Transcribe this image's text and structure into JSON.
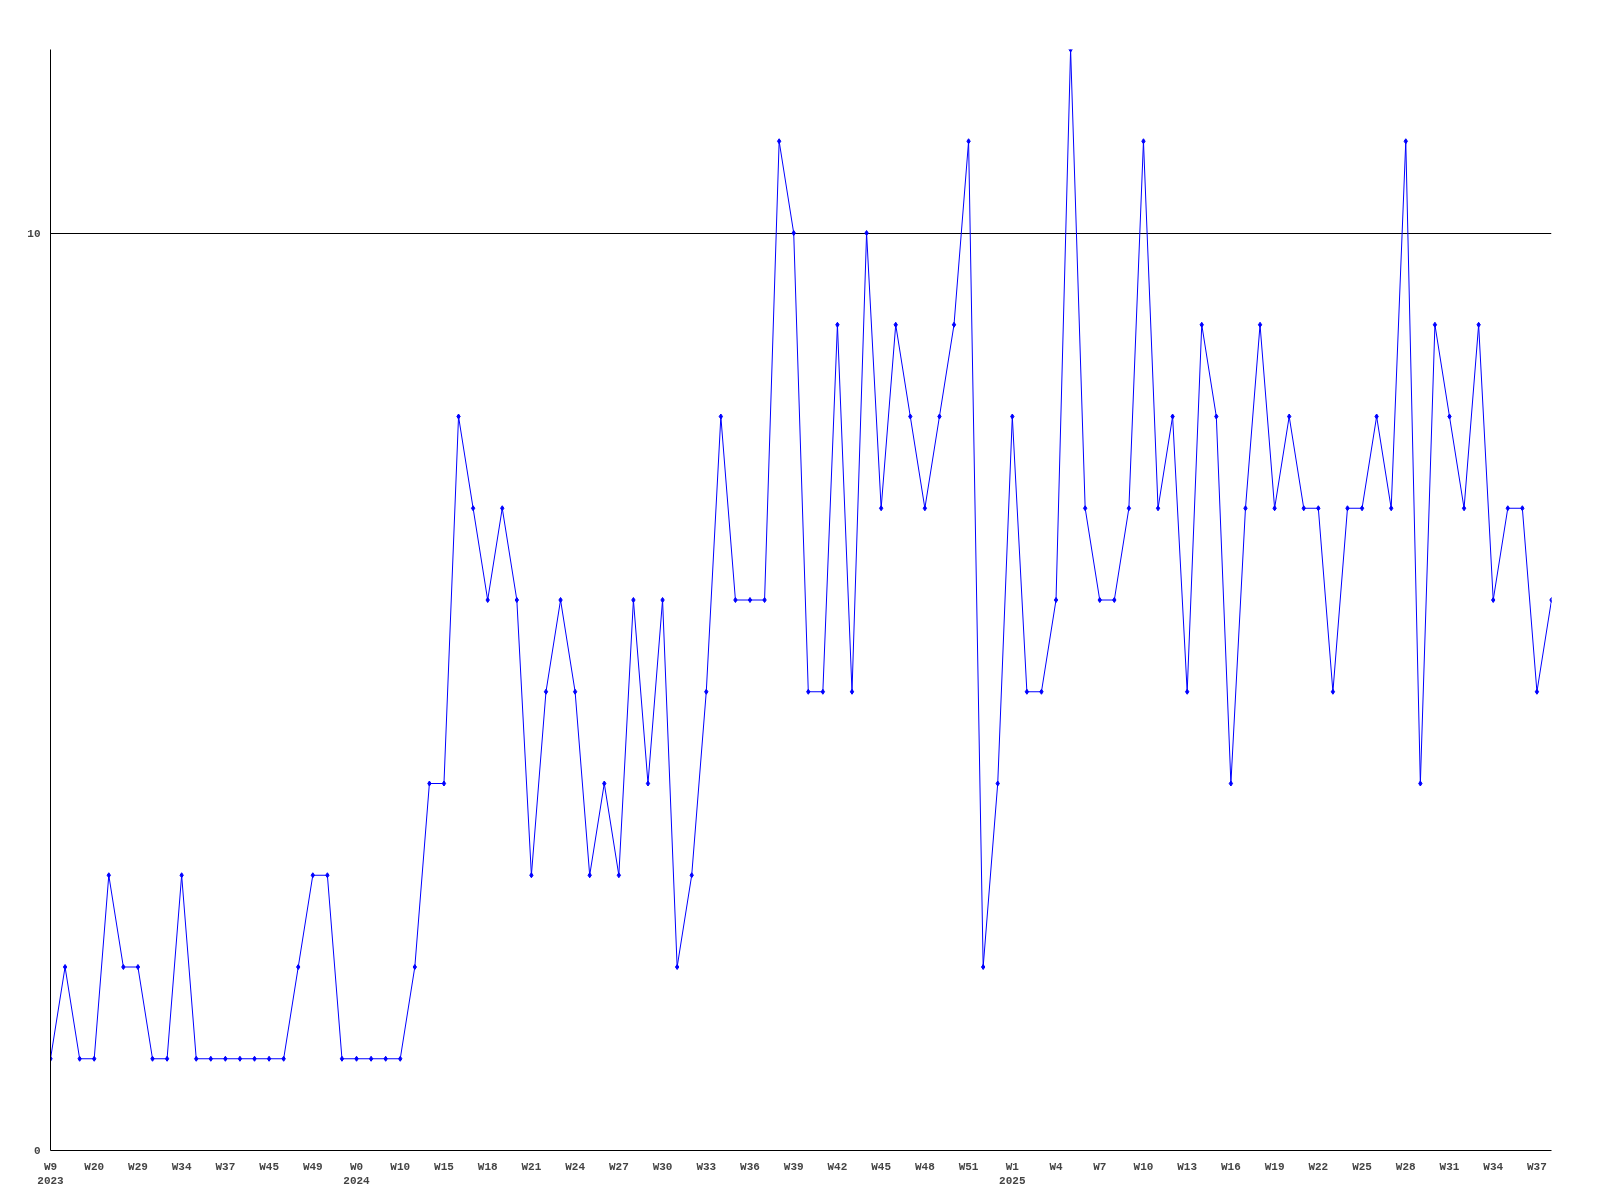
{
  "chart_data": {
    "type": "line",
    "categories": [
      "W9\n2023",
      null,
      null,
      "W20",
      null,
      null,
      "W29",
      null,
      null,
      "W34",
      null,
      null,
      "W37",
      null,
      null,
      "W45",
      null,
      null,
      "W49",
      null,
      null,
      "W0\n2024",
      null,
      null,
      "W10",
      null,
      null,
      "W15",
      null,
      null,
      "W18",
      null,
      null,
      "W21",
      null,
      null,
      "W24",
      null,
      null,
      "W27",
      null,
      null,
      "W30",
      null,
      null,
      "W33",
      null,
      null,
      "W36",
      null,
      null,
      "W39",
      null,
      null,
      "W42",
      null,
      null,
      "W45",
      null,
      null,
      "W48",
      null,
      null,
      "W51",
      null,
      null,
      "W1\n2025",
      null,
      null,
      "W4",
      null,
      null,
      "W7",
      null,
      null,
      "W10",
      null,
      null,
      "W13",
      null,
      null,
      "W16",
      null,
      null,
      "W19",
      null,
      null,
      "W22",
      null,
      null,
      "W25",
      null,
      null,
      "W28",
      null,
      null,
      "W31",
      null,
      null,
      "W34",
      null,
      null,
      "W37",
      null
    ],
    "series": [
      {
        "color": "#0000ff",
        "values": [
          1,
          2,
          1,
          1,
          3,
          2,
          2,
          1,
          1,
          3,
          1,
          1,
          1,
          1,
          1,
          1,
          1,
          2,
          3,
          3,
          1,
          1,
          1,
          1,
          1,
          2,
          4,
          4,
          8,
          7,
          6,
          7,
          6,
          3,
          5,
          6,
          5,
          3,
          4,
          3,
          6,
          4,
          6,
          2,
          3,
          5,
          8,
          6,
          6,
          6,
          11,
          10,
          5,
          5,
          9,
          5,
          10,
          7,
          9,
          8,
          7,
          8,
          9,
          11,
          2,
          4,
          8,
          5,
          5,
          6,
          12,
          7,
          6,
          6,
          7,
          11,
          7,
          8,
          5,
          9,
          8,
          4,
          7,
          9,
          7,
          8,
          7,
          7,
          5,
          7,
          7,
          8,
          7,
          11,
          4,
          9,
          8,
          7,
          9,
          6,
          7,
          7,
          5,
          6
        ]
      }
    ],
    "ylim": [
      0,
      12
    ],
    "yticks": [
      0,
      10
    ],
    "grid": "y",
    "marker": "diamond",
    "line_style": "solid"
  }
}
